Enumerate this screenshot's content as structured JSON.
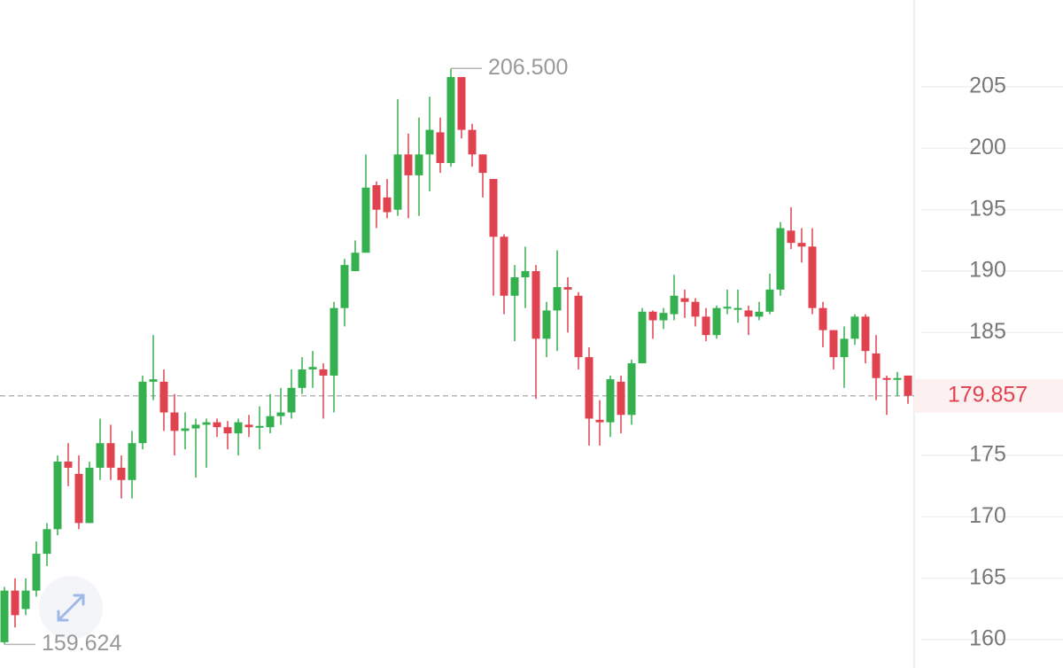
{
  "chart_data": {
    "type": "candlestick",
    "open": [
      159.8,
      164,
      162.5,
      164,
      167,
      169,
      174.5,
      173.5,
      169.5,
      174,
      176,
      174,
      173,
      176,
      181,
      181,
      178.5,
      177,
      177.2,
      177.5,
      177.7,
      177.3,
      176.8,
      177.5,
      177.3,
      177.3,
      178.2,
      178.5,
      180.5,
      182,
      182,
      181.5,
      187,
      190,
      191.5,
      197,
      196,
      195,
      199.5,
      197.8,
      199.5,
      201.3,
      198.8,
      205.8,
      201.5,
      199.5,
      197.5,
      192.8,
      188,
      189.5,
      190,
      184.5,
      186.8,
      188.7,
      188,
      183,
      177.9,
      177.7,
      181,
      178.3,
      182.5,
      186.7,
      186,
      186.5,
      187.8,
      187.5,
      186.3,
      184.8,
      187,
      187,
      186.8,
      186.3,
      186.7,
      188.5,
      193.3,
      192.3,
      192,
      187,
      185.2,
      183,
      184.5,
      186.3,
      183.3,
      181.3,
      181.2,
      181.5
    ],
    "high": [
      164.3,
      165,
      165,
      168,
      169.5,
      175,
      176,
      175,
      174.5,
      178,
      177.5,
      175,
      177,
      181.5,
      184.8,
      182,
      180,
      178.5,
      178,
      178,
      178,
      177.8,
      178,
      178.3,
      179,
      180,
      180.5,
      182,
      183,
      183.5,
      182.5,
      187.5,
      191,
      192.5,
      199.5,
      197.3,
      197.5,
      204,
      201.2,
      202.5,
      204.2,
      202.5,
      206.5,
      205.8,
      202,
      199.5,
      197.5,
      193,
      190.5,
      192,
      190.5,
      187.5,
      191.7,
      189.5,
      188.3,
      183.8,
      179.5,
      181.5,
      181.5,
      182.8,
      187,
      186.8,
      187,
      189.7,
      188.5,
      187.8,
      187,
      187.2,
      188.5,
      188.5,
      187.2,
      187.5,
      189.8,
      194,
      195.2,
      193.5,
      193.5,
      187.5,
      185.2,
      185.5,
      186.5,
      186.5,
      184.8,
      181.5,
      181.8,
      181.5
    ],
    "low": [
      159.624,
      161,
      162,
      163.5,
      166,
      168.5,
      172.5,
      169,
      169.5,
      173,
      173,
      171.5,
      171.5,
      175.5,
      179.5,
      177,
      175,
      175.5,
      173.2,
      174,
      176.5,
      175.5,
      175,
      176.5,
      175.5,
      176.8,
      177.5,
      178,
      180,
      180.5,
      178,
      178.5,
      185.5,
      190,
      191.5,
      193.5,
      194.3,
      194.5,
      194.3,
      194.5,
      196.5,
      198,
      198.5,
      200.8,
      198.5,
      196,
      188,
      186.5,
      184.3,
      187,
      179.6,
      183,
      183.5,
      185,
      182,
      175.8,
      175.8,
      176.5,
      176.8,
      177.5,
      182.5,
      184.5,
      185.3,
      186,
      186.2,
      185.5,
      184.3,
      184.5,
      186.5,
      185.8,
      184.8,
      186,
      186.5,
      188,
      191.8,
      190.7,
      186.5,
      183.8,
      182,
      180.5,
      184,
      182.5,
      179.5,
      178.3,
      179.8,
      179.2
    ],
    "close": [
      164,
      162,
      164,
      167,
      169,
      174.5,
      174,
      169.5,
      174,
      176,
      174,
      173,
      176,
      181,
      181.2,
      178.5,
      177,
      177.2,
      177.5,
      177.7,
      177.3,
      176.8,
      177.7,
      177.3,
      177.4,
      178.2,
      178.5,
      180.5,
      182,
      182.2,
      181.5,
      187,
      190.5,
      191.5,
      196.8,
      195,
      194.8,
      199.5,
      197.8,
      199.5,
      201.5,
      198.8,
      205.8,
      201.5,
      199.5,
      198,
      192.8,
      188,
      189.5,
      190,
      184.5,
      186.8,
      188.7,
      188.5,
      183,
      178,
      177.7,
      181.2,
      178.3,
      182.5,
      186.7,
      186,
      186.6,
      188,
      187.5,
      186.3,
      184.8,
      187,
      187.1,
      187,
      186.3,
      186.7,
      188.5,
      193.5,
      192.3,
      192,
      187,
      185.2,
      183,
      184.5,
      186.3,
      183.5,
      181.3,
      181.2,
      181.3,
      179.857
    ],
    "up_color": "#35b04f",
    "down_color": "#e0424f",
    "ylim": [
      157.7,
      212.07
    ],
    "yticks": [
      160,
      165,
      170,
      175,
      180,
      185,
      190,
      195,
      200,
      205
    ],
    "high_marker": {
      "value": 206.5,
      "label": "206.500"
    },
    "low_marker": {
      "value": 159.624,
      "label": "159.624"
    },
    "last_price": {
      "value": 179.857,
      "label": "179.857"
    },
    "grid": true
  }
}
